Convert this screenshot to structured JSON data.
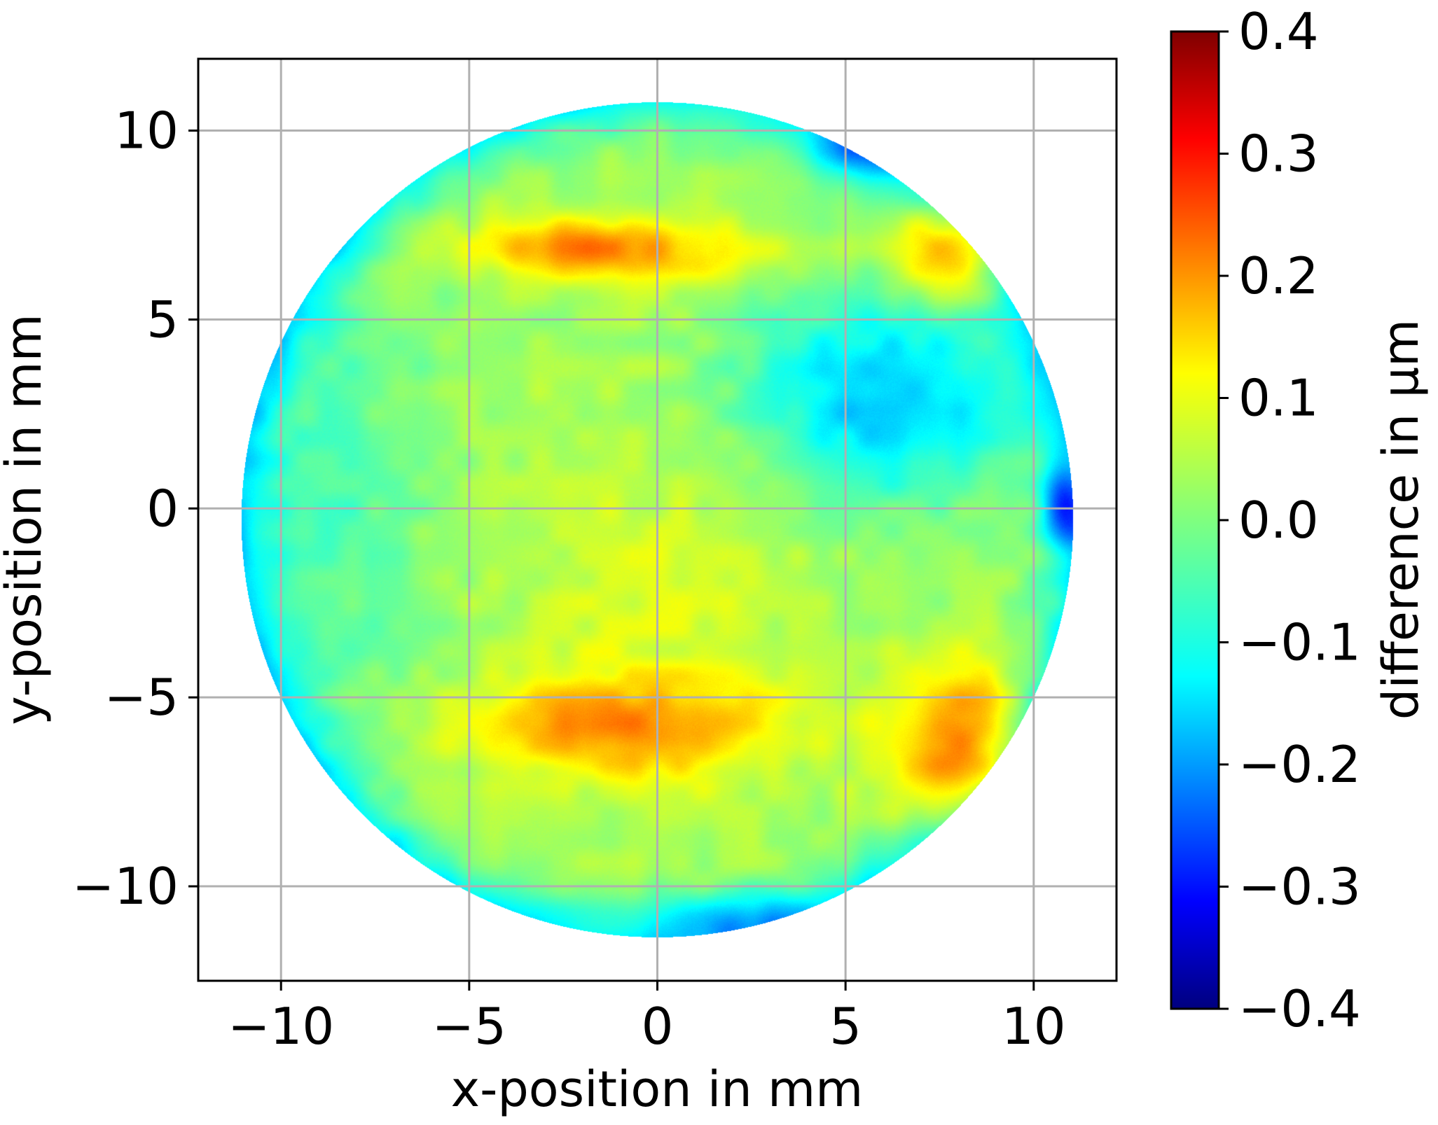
{
  "chart_data": {
    "type": "heatmap",
    "title": "",
    "xlabel": "x-position in mm",
    "ylabel": "y-position in mm",
    "xlim": [
      -12.2,
      12.2
    ],
    "ylim": [
      -12.5,
      11.9
    ],
    "xticks": [
      -10,
      -5,
      0,
      5,
      10
    ],
    "yticks": [
      -10,
      -5,
      0,
      5,
      10
    ],
    "xtick_labels": [
      "−10",
      "−5",
      "0",
      "5",
      "10"
    ],
    "ytick_labels": [
      "−10",
      "−5",
      "0",
      "5",
      "10"
    ],
    "grid": true,
    "aperture": {
      "shape": "circle",
      "center": [
        0,
        -0.3
      ],
      "radius_mm": 11.05
    },
    "colormap": "jet",
    "colorbar": {
      "label": "difference in µm",
      "range": [
        -0.4,
        0.4
      ],
      "ticks": [
        0.4,
        0.3,
        0.2,
        0.1,
        0.0,
        -0.1,
        -0.2,
        -0.3,
        -0.4
      ],
      "tick_labels": [
        "0.4",
        "0.3",
        "0.2",
        "0.1",
        "0.0",
        "−0.1",
        "−0.2",
        "−0.3",
        "−0.4"
      ]
    },
    "base_value_um": 0.02,
    "features": [
      {
        "kind": "gaussian",
        "x": -2,
        "y": 6.95,
        "sx": 2.2,
        "sy": 0.55,
        "value": 0.14,
        "note": "warm band near y=7"
      },
      {
        "kind": "gaussian",
        "x": 0.5,
        "y": 6.7,
        "sx": 2.5,
        "sy": 0.6,
        "value": 0.06
      },
      {
        "kind": "gaussian",
        "x": -1,
        "y": -5.8,
        "sx": 3.0,
        "sy": 0.9,
        "value": 0.15,
        "note": "warm band near y=-6"
      },
      {
        "kind": "gaussian",
        "x": 8,
        "y": 7,
        "sx": 1.2,
        "sy": 1.0,
        "value": 0.2
      },
      {
        "kind": "gaussian",
        "x": 8.2,
        "y": -6.5,
        "sx": 1.4,
        "sy": 1.6,
        "value": 0.2
      },
      {
        "kind": "gaussian",
        "x": 0,
        "y": -2.5,
        "sx": 3.0,
        "sy": 4.0,
        "value": 0.05
      },
      {
        "kind": "gaussian",
        "x": 6,
        "y": 3,
        "sx": 2.6,
        "sy": 1.9,
        "value": -0.17,
        "note": "cool region upper right"
      },
      {
        "kind": "gaussian",
        "x": 10.8,
        "y": 0,
        "sx": 0.4,
        "sy": 0.7,
        "value": -0.2
      },
      {
        "kind": "gaussian",
        "x": 5.5,
        "y": 9.5,
        "sx": 0.9,
        "sy": 0.5,
        "value": -0.12
      },
      {
        "kind": "gaussian",
        "x": 2,
        "y": -10.8,
        "sx": 1.5,
        "sy": 0.5,
        "value": -0.12
      },
      {
        "kind": "rim",
        "width_mm": 1.8,
        "value": -0.12,
        "note": "cooler edge ring"
      },
      {
        "kind": "gaussian",
        "x": -9,
        "y": 0,
        "sx": 2.0,
        "sy": 5.0,
        "value": -0.06
      }
    ]
  }
}
